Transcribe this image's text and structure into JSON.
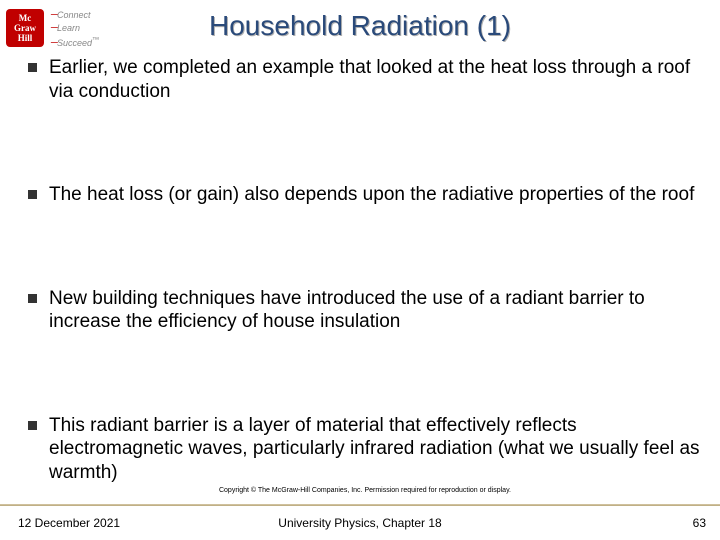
{
  "logo": {
    "line1": "Mc",
    "line2": "Graw",
    "line3": "Hill",
    "tag1": "Connect",
    "tag2": "Learn",
    "tag3": "Succeed",
    "tm": "™"
  },
  "title": "Household Radiation (1)",
  "bullets": [
    "Earlier, we completed an example that looked at the heat loss through a roof via conduction",
    "The heat loss (or gain) also depends upon the radiative properties of the roof",
    "New building techniques have introduced the use of a radiant barrier to increase the efficiency of house insulation",
    "This radiant barrier is a layer of material that effectively reflects electromagnetic waves, particularly infrared radiation (what we usually feel as warmth)"
  ],
  "copyright": "Copyright © The McGraw-Hill Companies, Inc. Permission required for reproduction or display.",
  "footer": {
    "date": "12 December 2021",
    "center": "University Physics, Chapter 18",
    "page": "63"
  },
  "colors": {
    "title_color": "#2a4a7a",
    "logo_bg": "#c00000",
    "bullet_square": "#333333"
  }
}
